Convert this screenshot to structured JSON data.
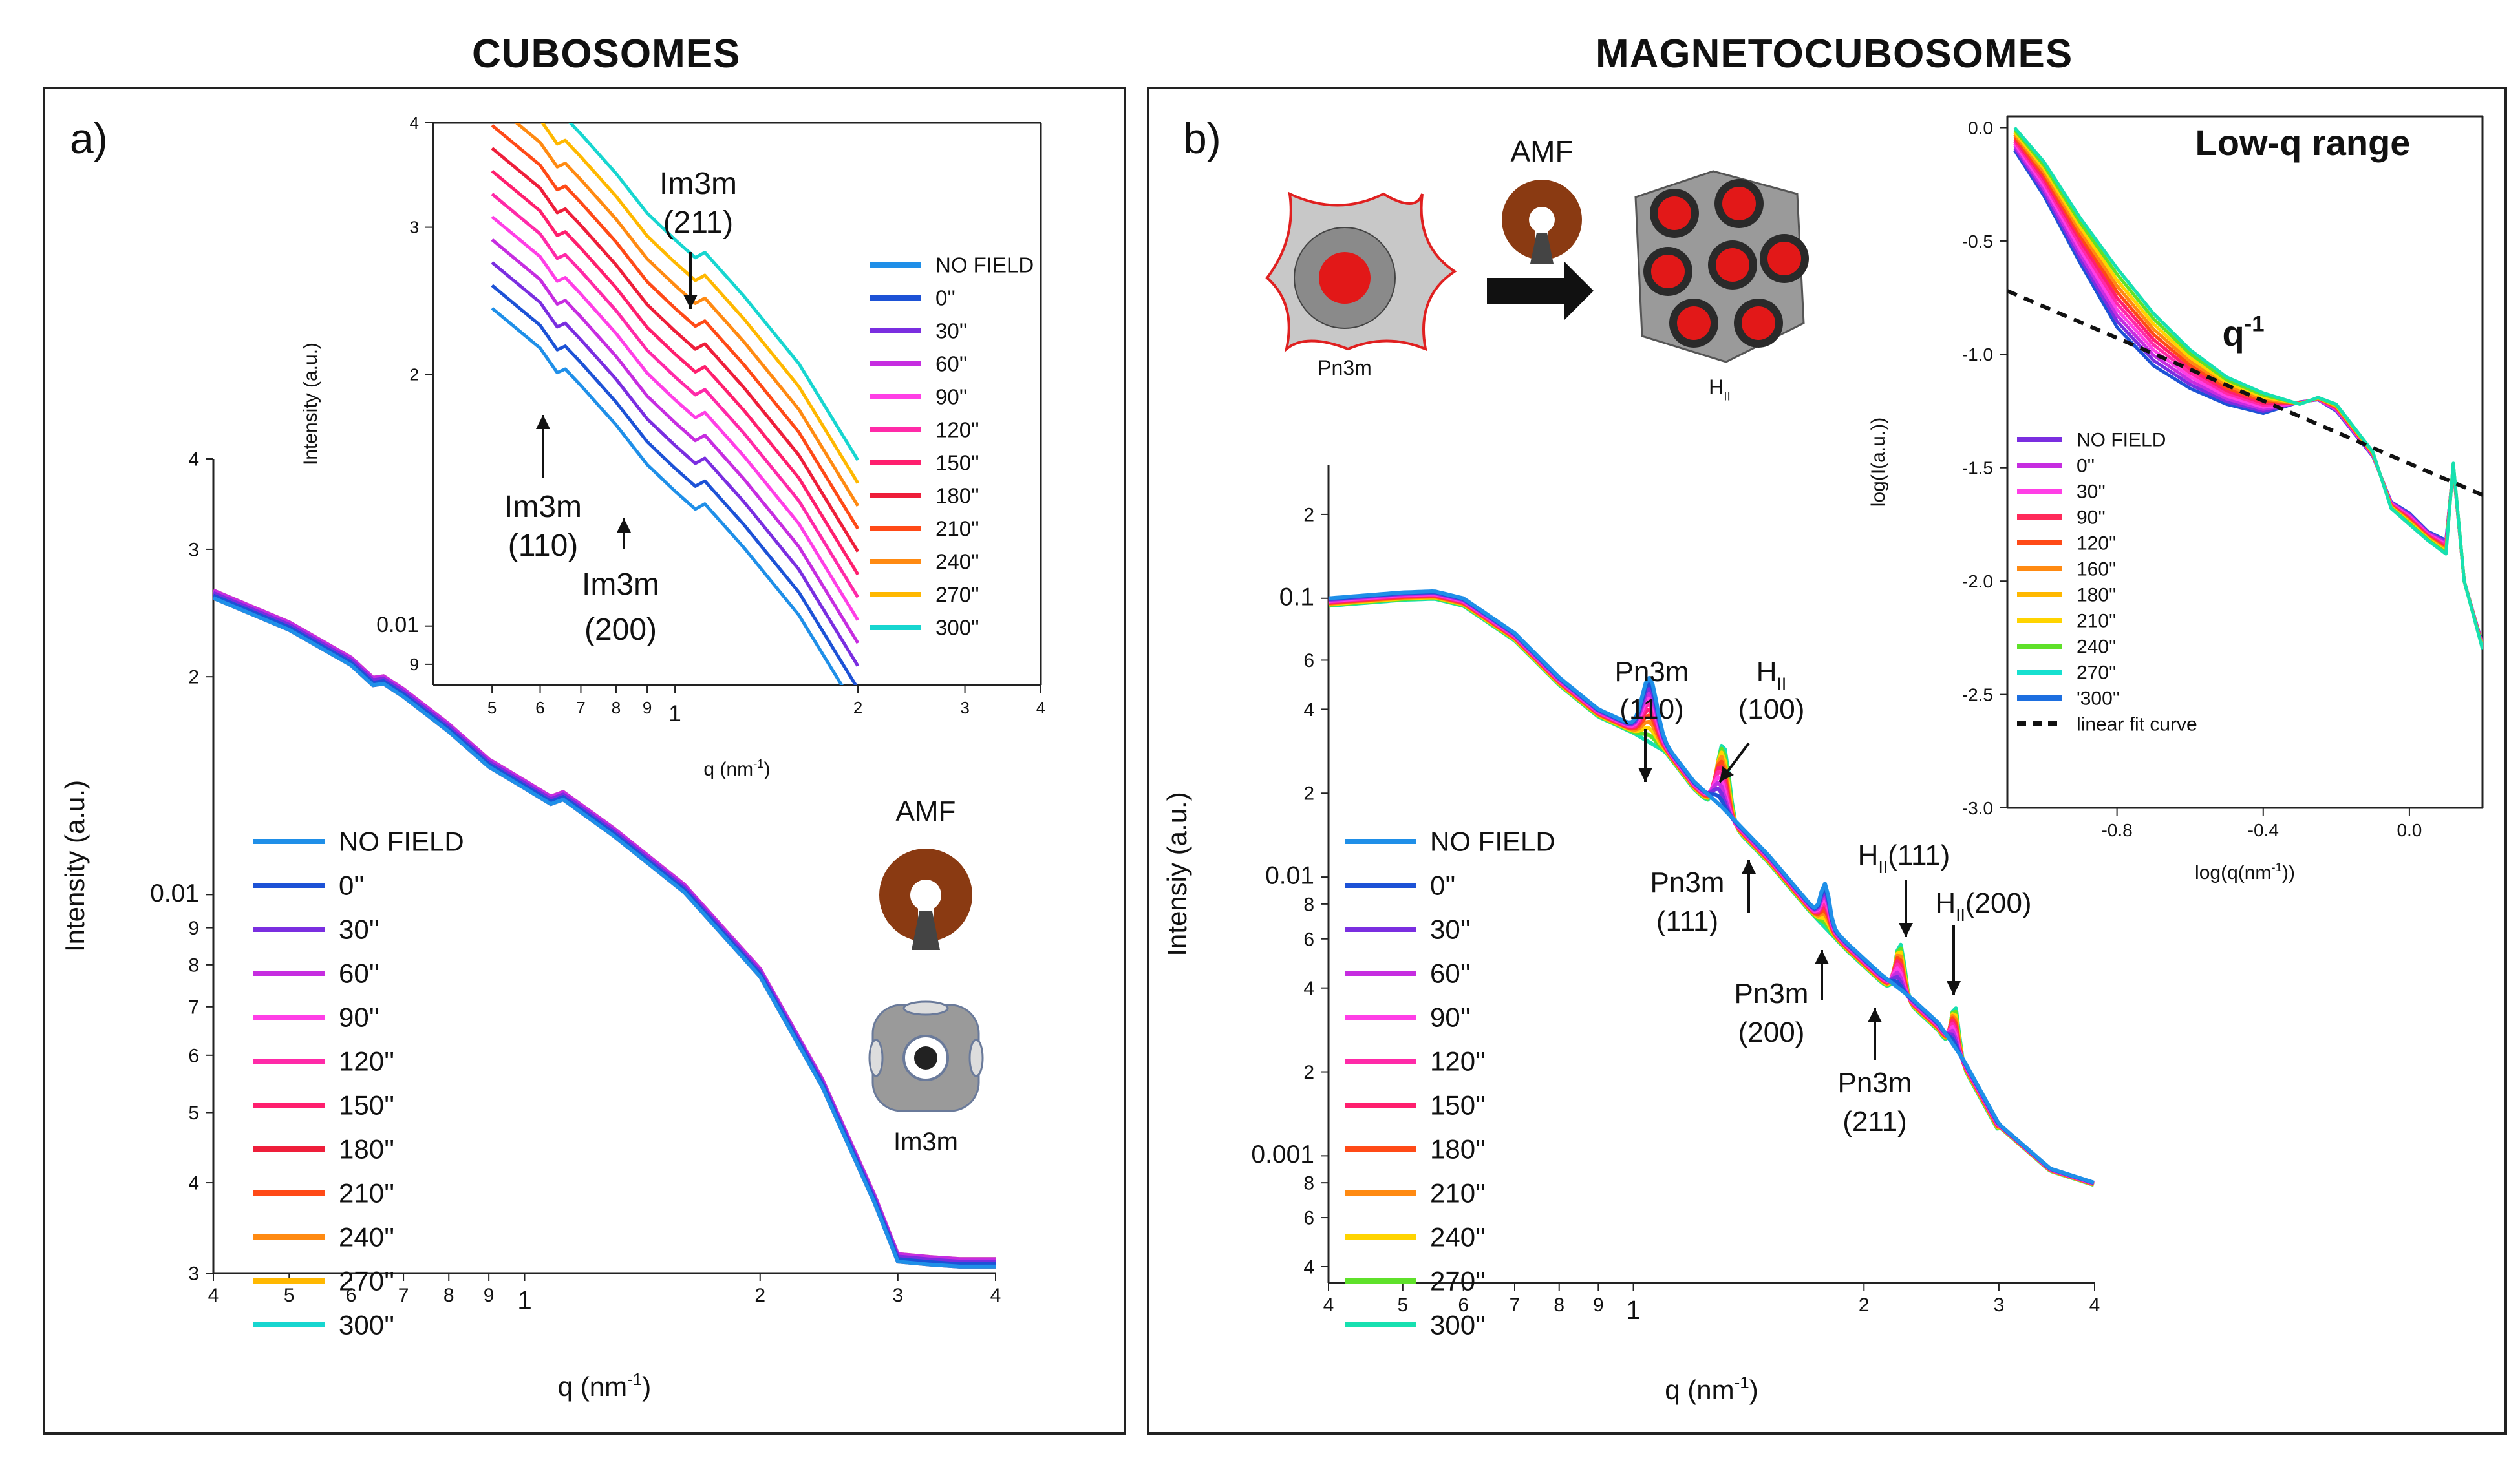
{
  "titles": {
    "left": "CUBOSOMES",
    "right": "MAGNETOCUBOSOMES"
  },
  "panel_labels": {
    "a": "a)",
    "b": "b)"
  },
  "schematics": {
    "amf": "AMF",
    "im3m": "Im3m",
    "pn3m": "Pn3m",
    "hii": "H",
    "hii_sub": "II"
  },
  "colors": [
    "#1f8fe8",
    "#1d52d6",
    "#7a2ee0",
    "#c62de0",
    "#ff3fe6",
    "#ff2aa8",
    "#ff1f6e",
    "#ee1e3a",
    "#ff4a17",
    "#ff8a12",
    "#ffb800",
    "#17d6d0"
  ],
  "colors_b": [
    "#1f8fe8",
    "#1d52d6",
    "#7a2ee0",
    "#c62de0",
    "#ff3fe6",
    "#ff2aa8",
    "#ff1f6e",
    "#ff4a17",
    "#ff8a12",
    "#ffd400",
    "#5fe12a",
    "#17e0b0"
  ],
  "legend_a": [
    "NO FIELD",
    "0''",
    "30''",
    "60''",
    "90''",
    "120''",
    "150''",
    "180''",
    "210''",
    "240''",
    "270''",
    "300''"
  ],
  "legend_b": [
    "NO FIELD",
    "0''",
    "30''",
    "60''",
    "90''",
    "120''",
    "150''",
    "180''",
    "210''",
    "240''",
    "270''",
    "300''"
  ],
  "legend_inset_b": [
    "NO FIELD",
    "0''",
    "30''",
    "90''",
    "120''",
    "160''",
    "180''",
    "210''",
    "240''",
    "270''",
    "'300''",
    "linear fit curve"
  ],
  "chart_data": [
    {
      "id": "a-main",
      "type": "line",
      "xlabel": "q (nm",
      "xlabel_sup": "-1",
      "xlabel_end": ")",
      "ylabel": "Intensity (a.u.)",
      "xscale": "log",
      "yscale": "log",
      "xlim": [
        0.4,
        4.0
      ],
      "ylim": [
        0.003,
        0.04
      ],
      "xticks": [
        {
          "v": 0.4,
          "l": "4"
        },
        {
          "v": 0.5,
          "l": "5"
        },
        {
          "v": 0.6,
          "l": "6"
        },
        {
          "v": 0.7,
          "l": "7"
        },
        {
          "v": 0.8,
          "l": "8"
        },
        {
          "v": 0.9,
          "l": "9"
        },
        {
          "v": 1,
          "l": "1"
        },
        {
          "v": 2,
          "l": "2"
        },
        {
          "v": 3,
          "l": "3"
        },
        {
          "v": 4,
          "l": "4"
        }
      ],
      "yticks": [
        {
          "v": 0.003,
          "l": "3"
        },
        {
          "v": 0.004,
          "l": "4"
        },
        {
          "v": 0.005,
          "l": "5"
        },
        {
          "v": 0.006,
          "l": "6"
        },
        {
          "v": 0.007,
          "l": "7"
        },
        {
          "v": 0.008,
          "l": "8"
        },
        {
          "v": 0.009,
          "l": "9"
        },
        {
          "v": 0.01,
          "l": "0.01"
        },
        {
          "v": 0.02,
          "l": "2"
        },
        {
          "v": 0.03,
          "l": "3"
        },
        {
          "v": 0.04,
          "l": "4"
        }
      ],
      "x": [
        0.4,
        0.5,
        0.6,
        0.64,
        0.66,
        0.7,
        0.8,
        0.9,
        1.0,
        1.08,
        1.12,
        1.3,
        1.6,
        2.0,
        2.4,
        2.8,
        3.0,
        3.3,
        3.6,
        4.0
      ],
      "y": [
        0.026,
        0.0235,
        0.021,
        0.0197,
        0.0198,
        0.019,
        0.017,
        0.0152,
        0.0142,
        0.0135,
        0.0137,
        0.0122,
        0.0102,
        0.0078,
        0.0055,
        0.0038,
        0.00315,
        0.00312,
        0.0031,
        0.0031
      ]
    },
    {
      "id": "a-inset",
      "type": "line",
      "xlabel": "q (nm",
      "xlabel_sup": "-1",
      "xlabel_end": ")",
      "ylabel": "Intensity (a.u.)",
      "xscale": "log",
      "yscale": "log",
      "xlim": [
        0.4,
        4.0
      ],
      "ylim": [
        0.0085,
        0.04
      ],
      "xticks": [
        {
          "v": 0.5,
          "l": "5"
        },
        {
          "v": 0.6,
          "l": "6"
        },
        {
          "v": 0.7,
          "l": "7"
        },
        {
          "v": 0.8,
          "l": "8"
        },
        {
          "v": 0.9,
          "l": "9"
        },
        {
          "v": 1,
          "l": "1"
        },
        {
          "v": 2,
          "l": "2"
        },
        {
          "v": 3,
          "l": "3"
        },
        {
          "v": 4,
          "l": "4"
        }
      ],
      "yticks": [
        {
          "v": 0.009,
          "l": "9"
        },
        {
          "v": 0.01,
          "l": "0.01"
        },
        {
          "v": 0.02,
          "l": "2"
        },
        {
          "v": 0.03,
          "l": "3"
        },
        {
          "v": 0.04,
          "l": "4"
        }
      ],
      "x": [
        0.5,
        0.6,
        0.64,
        0.66,
        0.7,
        0.8,
        0.9,
        1.0,
        1.08,
        1.12,
        1.3,
        1.6,
        2.0
      ],
      "y": [
        0.024,
        0.0215,
        0.0201,
        0.0203,
        0.0194,
        0.0174,
        0.0156,
        0.0145,
        0.0138,
        0.014,
        0.0124,
        0.0103,
        0.0079
      ],
      "offset_factor": 1.065,
      "annotations": [
        {
          "line1": "Im3m",
          "line2": "(211)"
        },
        {
          "line1": "Im3m",
          "line2": "(110)"
        },
        {
          "line1": "Im3m",
          "line2": "(200)"
        }
      ]
    },
    {
      "id": "b-main",
      "type": "line",
      "xlabel": "q (nm",
      "xlabel_sup": "-1",
      "xlabel_end": ")",
      "ylabel": "Intensiy (a.u.)",
      "xscale": "log",
      "yscale": "log",
      "xlim": [
        0.4,
        4.0
      ],
      "ylim": [
        0.00035,
        0.3
      ],
      "xticks": [
        {
          "v": 0.4,
          "l": "4"
        },
        {
          "v": 0.5,
          "l": "5"
        },
        {
          "v": 0.6,
          "l": "6"
        },
        {
          "v": 0.7,
          "l": "7"
        },
        {
          "v": 0.8,
          "l": "8"
        },
        {
          "v": 0.9,
          "l": "9"
        },
        {
          "v": 1,
          "l": "1"
        },
        {
          "v": 2,
          "l": "2"
        },
        {
          "v": 3,
          "l": "3"
        },
        {
          "v": 4,
          "l": "4"
        }
      ],
      "yticks": [
        {
          "v": 0.0004,
          "l": "4"
        },
        {
          "v": 0.0006,
          "l": "6"
        },
        {
          "v": 0.0008,
          "l": "8"
        },
        {
          "v": 0.001,
          "l": "0.001"
        },
        {
          "v": 0.002,
          "l": "2"
        },
        {
          "v": 0.004,
          "l": "4"
        },
        {
          "v": 0.006,
          "l": "6"
        },
        {
          "v": 0.008,
          "l": "8"
        },
        {
          "v": 0.01,
          "l": "0.01"
        },
        {
          "v": 0.02,
          "l": "2"
        },
        {
          "v": 0.04,
          "l": "4"
        },
        {
          "v": 0.06,
          "l": "6"
        },
        {
          "v": 0.1,
          "l": "0.1"
        },
        {
          "v": 0.2,
          "l": "2"
        }
      ],
      "x": [
        0.4,
        0.5,
        0.55,
        0.6,
        0.7,
        0.8,
        0.9,
        1.0,
        1.1,
        1.2,
        1.3,
        1.5,
        1.7,
        1.9,
        2.1,
        2.3,
        2.5,
        2.7,
        3.0,
        3.5,
        4.0
      ],
      "y": [
        0.1,
        0.105,
        0.106,
        0.1,
        0.075,
        0.052,
        0.04,
        0.035,
        0.03,
        0.022,
        0.018,
        0.012,
        0.008,
        0.0058,
        0.0045,
        0.0037,
        0.003,
        0.0022,
        0.0013,
        0.0009,
        0.0008
      ],
      "annotations": [
        {
          "line1": "Pn3m",
          "line2": "(110)"
        },
        {
          "line1": "H",
          "sub": "II",
          "line2": "(100)"
        },
        {
          "line1": "Pn3m",
          "line2": "(111)"
        },
        {
          "line1": "H",
          "sub": "II",
          "tail": "(111)"
        },
        {
          "line1": "H",
          "sub": "II",
          "tail": "(200)"
        },
        {
          "line1": "Pn3m",
          "line2": "(200)"
        },
        {
          "line1": "Pn3m",
          "line2": "(211)"
        }
      ]
    },
    {
      "id": "b-inset",
      "type": "line",
      "title": "Low-q range",
      "xlabel": "log(q(nm",
      "xlabel_sup": "-1",
      "xlabel_end": "))",
      "ylabel": "log(I(a.u.))",
      "xlim": [
        -1.1,
        0.2
      ],
      "ylim": [
        -3.0,
        0.05
      ],
      "xticks": [
        {
          "v": -0.8,
          "l": "-0.8"
        },
        {
          "v": -0.4,
          "l": "-0.4"
        },
        {
          "v": 0.0,
          "l": "0.0"
        }
      ],
      "yticks": [
        {
          "v": 0.0,
          "l": "0.0"
        },
        {
          "v": -0.5,
          "l": "-0.5"
        },
        {
          "v": -1.0,
          "l": "-1.0"
        },
        {
          "v": -1.5,
          "l": "-1.5"
        },
        {
          "v": -2.0,
          "l": "-2.0"
        },
        {
          "v": -2.5,
          "l": "-2.5"
        },
        {
          "v": -3.0,
          "l": "-3.0"
        }
      ],
      "x": [
        -1.08,
        -1.0,
        -0.9,
        -0.8,
        -0.7,
        -0.6,
        -0.5,
        -0.4,
        -0.3,
        -0.25,
        -0.2,
        -0.1,
        -0.05,
        0.0,
        0.05,
        0.1,
        0.12,
        0.15,
        0.2
      ],
      "y_early": [
        -0.1,
        -0.3,
        -0.6,
        -0.88,
        -1.05,
        -1.15,
        -1.22,
        -1.26,
        -1.21,
        -1.2,
        -1.25,
        -1.45,
        -1.65,
        -1.7,
        -1.78,
        -1.82,
        -1.5,
        -2.0,
        -2.28
      ],
      "y_late": [
        0.0,
        -0.15,
        -0.4,
        -0.62,
        -0.82,
        -0.98,
        -1.1,
        -1.17,
        -1.22,
        -1.19,
        -1.22,
        -1.43,
        -1.68,
        -1.75,
        -1.82,
        -1.88,
        -1.48,
        -2.0,
        -2.3
      ],
      "fit": {
        "x": [
          -1.1,
          0.2
        ],
        "y": [
          -0.72,
          -1.62
        ]
      },
      "annotation": {
        "label": "q",
        "sup": "-1"
      }
    }
  ]
}
